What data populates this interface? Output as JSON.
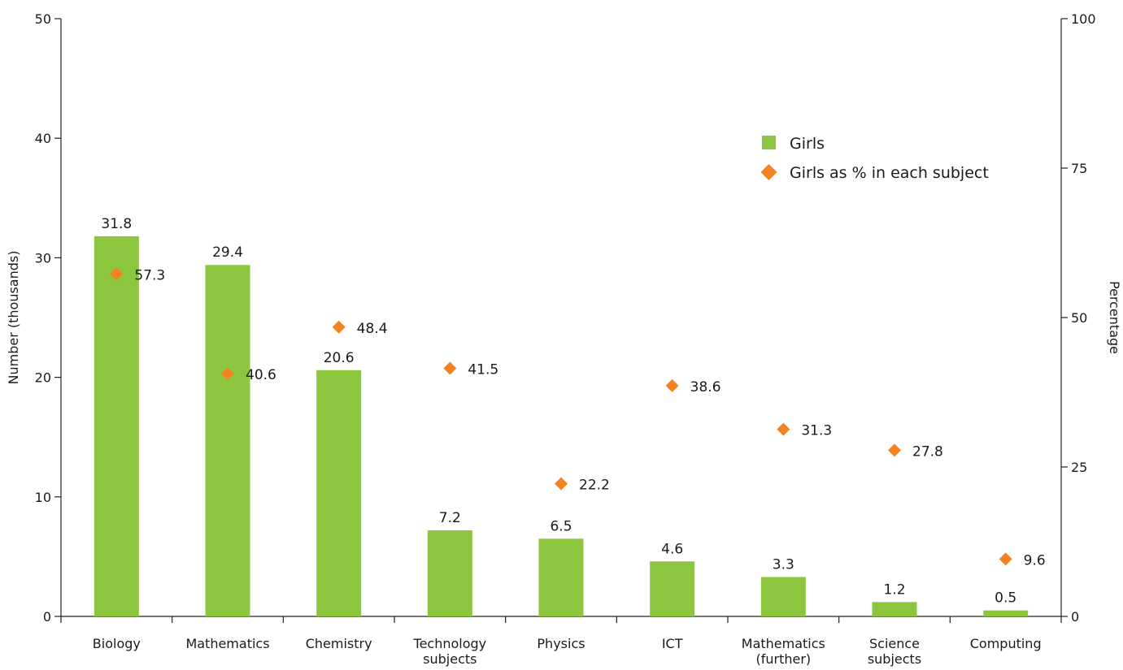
{
  "chart_data": {
    "type": "bar",
    "categories": [
      [
        "Biology"
      ],
      [
        "Mathematics"
      ],
      [
        "Chemistry"
      ],
      [
        "Technology",
        "subjects"
      ],
      [
        "Physics"
      ],
      [
        "ICT"
      ],
      [
        "Mathematics",
        "(further)"
      ],
      [
        "Science",
        "subjects"
      ],
      [
        "Computing"
      ]
    ],
    "series": [
      {
        "name": "Girls",
        "kind": "bar",
        "axis": "left",
        "color": "#8cc63f",
        "values": [
          31.8,
          29.4,
          20.6,
          7.2,
          6.5,
          4.6,
          3.3,
          1.2,
          0.5
        ],
        "labels": [
          "31.8",
          "29.4",
          "20.6",
          "7.2",
          "6.5",
          "4.6",
          "3.3",
          "1.2",
          "0.5"
        ]
      },
      {
        "name": "Girls as % in each subject",
        "kind": "diamond",
        "axis": "right",
        "color": "#f58220",
        "values": [
          57.3,
          40.6,
          48.4,
          41.5,
          22.2,
          38.6,
          31.3,
          27.8,
          9.6
        ],
        "labels": [
          "57.3",
          "40.6",
          "48.4",
          "41.5",
          "22.2",
          "38.6",
          "31.3",
          "27.8",
          "9.6"
        ]
      }
    ],
    "y_left": {
      "label": "Number (thousands)",
      "range": [
        0,
        50
      ],
      "ticks": [
        0,
        10,
        20,
        30,
        40,
        50
      ],
      "tick_labels": [
        "0",
        "10",
        "20",
        "30",
        "40",
        "50"
      ]
    },
    "y_right": {
      "label": "Percentage",
      "range": [
        0,
        100
      ],
      "ticks": [
        0,
        25,
        50,
        75,
        100
      ],
      "tick_labels": [
        "0",
        "25",
        "50",
        "75",
        "100"
      ]
    },
    "grid": false,
    "legend": "top-right"
  }
}
